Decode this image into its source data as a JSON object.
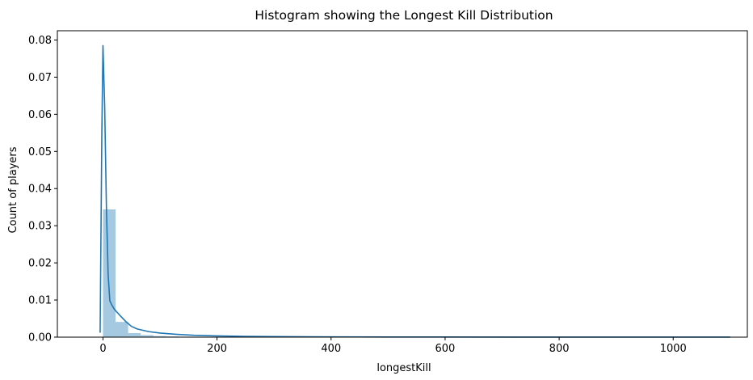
{
  "chart_data": {
    "type": "bar",
    "title": "Histogram showing the Longest Kill Distribution",
    "xlabel": "longestKill",
    "ylabel": "Count of players",
    "xlim": [
      -80,
      1130
    ],
    "ylim": [
      0,
      0.0825
    ],
    "xticks": [
      0,
      200,
      400,
      600,
      800,
      1000
    ],
    "xtick_labels": [
      "0",
      "200",
      "400",
      "600",
      "800",
      "1000"
    ],
    "yticks": [
      0,
      0.01,
      0.02,
      0.03,
      0.04,
      0.05,
      0.06,
      0.07,
      0.08
    ],
    "ytick_labels": [
      "0.00",
      "0.01",
      "0.02",
      "0.03",
      "0.04",
      "0.05",
      "0.06",
      "0.07",
      "0.08"
    ],
    "grid": false,
    "legend": "none",
    "colors": {
      "bar": "#1f77b4",
      "line": "#1f77b4"
    },
    "histogram": {
      "bin_start": 0,
      "bin_width": 22.07,
      "values": [
        0.0344,
        0.0041,
        0.0011,
        0.00055,
        0.0003,
        0.0002,
        0.00014,
        0.0001,
        8e-05,
        6e-05,
        5e-05,
        4e-05,
        3e-05,
        2.5e-05,
        2e-05,
        1.6e-05,
        1.3e-05,
        1e-05,
        9e-06,
        8e-06,
        7e-06,
        6e-06,
        5e-06,
        4.5e-06,
        4e-06,
        3.5e-06,
        3e-06,
        2.7e-06,
        2.4e-06,
        2.1e-06,
        1.9e-06,
        1.7e-06,
        1.5e-06,
        1.3e-06,
        1.2e-06,
        1.1e-06,
        1e-06,
        9e-07,
        8e-07,
        7e-07,
        6e-07,
        5e-07,
        4e-07,
        3e-07,
        3e-07,
        2e-07,
        2e-07,
        1e-07,
        1e-07,
        1e-07
      ]
    },
    "kde": {
      "x": [
        -5,
        -2,
        0,
        3,
        6,
        9,
        12,
        15,
        20,
        30,
        40,
        50,
        60,
        80,
        100,
        130,
        160,
        200,
        250,
        300,
        400,
        500,
        600,
        800,
        1000,
        1100
      ],
      "y": [
        0.0012,
        0.055,
        0.0785,
        0.062,
        0.035,
        0.017,
        0.0098,
        0.0088,
        0.0075,
        0.0058,
        0.0042,
        0.0029,
        0.0022,
        0.0015,
        0.0011,
        0.00075,
        0.0005,
        0.00035,
        0.00022,
        0.00015,
        8e-05,
        5e-05,
        3e-05,
        1.5e-05,
        8e-06,
        5e-06
      ]
    }
  }
}
